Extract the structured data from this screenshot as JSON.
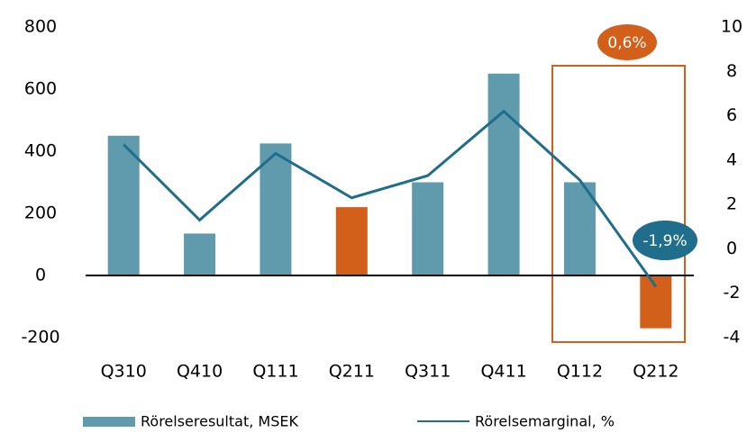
{
  "chart_data": {
    "type": "bar_line",
    "categories": [
      "Q310",
      "Q410",
      "Q111",
      "Q211",
      "Q311",
      "Q411",
      "Q112",
      "Q212"
    ],
    "series": [
      {
        "name": "Rörelseresultat, MSEK",
        "type": "bar",
        "color": "#5f9aad",
        "colors": [
          "#5f9aad",
          "#5f9aad",
          "#5f9aad",
          "#d2601a",
          "#5f9aad",
          "#5f9aad",
          "#5f9aad",
          "#d2601a"
        ],
        "values": [
          450,
          135,
          425,
          220,
          300,
          650,
          300,
          -170
        ]
      },
      {
        "name": "Rörelsemarginal, %",
        "type": "line",
        "axis": "y2",
        "color": "#1f6e8c",
        "values": [
          4.7,
          1.3,
          4.3,
          2.3,
          3.3,
          6.2,
          3.1,
          -1.7
        ]
      }
    ],
    "ylim": [
      -200,
      800
    ],
    "yticks": [
      -200,
      0,
      200,
      400,
      600,
      800
    ],
    "y2lim": [
      -4,
      10
    ],
    "y2ticks": [
      -4,
      -2,
      0,
      2,
      4,
      6,
      8,
      10
    ],
    "annotations": [
      {
        "text": "0,6%",
        "color": "#d2601a"
      },
      {
        "text": "-1,9%",
        "color": "#1f6e8c"
      }
    ]
  }
}
